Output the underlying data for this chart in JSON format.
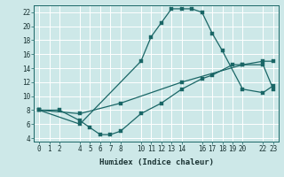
{
  "bg_color": "#cde8e8",
  "grid_color": "#b0d0d0",
  "line_color": "#1a6666",
  "line_width": 0.9,
  "marker_size": 2.5,
  "xlabel": "Humidex (Indice chaleur)",
  "xlim": [
    -0.5,
    23.5
  ],
  "ylim": [
    3.5,
    23
  ],
  "xticks": [
    0,
    1,
    2,
    4,
    5,
    6,
    7,
    8,
    10,
    11,
    12,
    13,
    14,
    16,
    17,
    18,
    19,
    20,
    22,
    23
  ],
  "yticks": [
    4,
    6,
    8,
    10,
    12,
    14,
    16,
    18,
    20,
    22
  ],
  "line1_x": [
    0,
    4,
    10,
    11,
    12,
    13,
    14,
    15,
    16,
    17,
    18,
    20,
    22,
    23
  ],
  "line1_y": [
    8,
    6,
    15,
    18.5,
    20.5,
    22.5,
    22.5,
    22.5,
    22,
    19,
    16.5,
    11,
    10.5,
    11.5
  ],
  "line2_x": [
    0,
    4,
    8,
    14,
    20,
    22,
    23
  ],
  "line2_y": [
    8,
    7.5,
    9,
    12,
    14.5,
    15,
    15
  ],
  "line3_x": [
    0,
    2,
    4,
    5,
    6,
    7,
    8,
    10,
    12,
    14,
    16,
    17,
    19,
    20,
    22,
    23
  ],
  "line3_y": [
    8,
    8,
    6.5,
    5.5,
    4.5,
    4.5,
    5,
    7.5,
    9,
    11,
    12.5,
    13,
    14.5,
    14.5,
    14.5,
    11
  ]
}
